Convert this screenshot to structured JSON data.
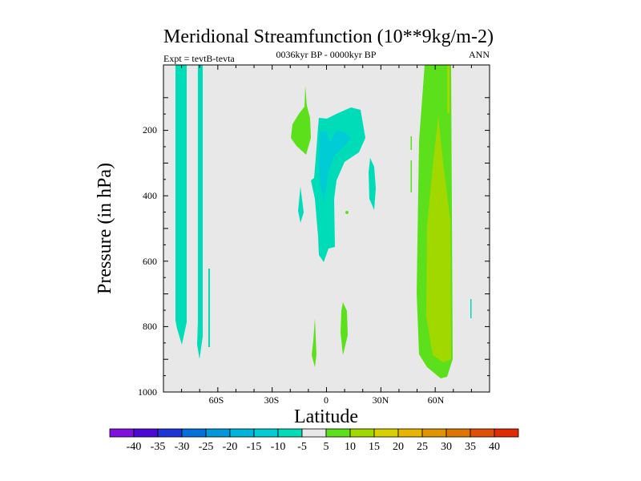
{
  "chart_data": {
    "type": "heatmap",
    "subtype": "filled-contour",
    "title": "Meridional Streamfunction (10**9kg/m-2)",
    "subtitle_left": "Expt = tevtB-tevta",
    "subtitle_center": "0036kyr BP - 0000kyr BP",
    "subtitle_right": "ANN",
    "xlabel": "Latitude",
    "ylabel": "Pressure (in hPa)",
    "xlim": [
      -90,
      90
    ],
    "ylim": [
      1000,
      0
    ],
    "x_ticks": [
      {
        "value": -60,
        "label": "60S"
      },
      {
        "value": -30,
        "label": "30S"
      },
      {
        "value": 0,
        "label": "0"
      },
      {
        "value": 30,
        "label": "30N"
      },
      {
        "value": 60,
        "label": "60N"
      }
    ],
    "y_ticks": [
      {
        "value": 200,
        "label": "200"
      },
      {
        "value": 400,
        "label": "400"
      },
      {
        "value": 600,
        "label": "600"
      },
      {
        "value": 800,
        "label": "800"
      },
      {
        "value": 1000,
        "label": "1000"
      }
    ],
    "colorbar": {
      "labels": [
        "-40",
        "-35",
        "-30",
        "-25",
        "-20",
        "-15",
        "-10",
        "-5",
        "5",
        "10",
        "15",
        "20",
        "25",
        "30",
        "35",
        "40"
      ],
      "colors": [
        "#7f10df",
        "#4c08d8",
        "#1e34d8",
        "#0070dc",
        "#0098dc",
        "#00b4dc",
        "#00ccd6",
        "#00dcb8",
        "#e8e8e8",
        "#5ce01c",
        "#a0d800",
        "#d8d000",
        "#e8b400",
        "#e09400",
        "#e07400",
        "#e05000",
        "#e02c00"
      ]
    },
    "features": [
      {
        "region": "~80S, 0-850 hPa",
        "range": "-10 to -5"
      },
      {
        "region": "~68S, 0-900 hPa",
        "range": "-10 to -5"
      },
      {
        "region": "~10S-20N, 150-600 hPa",
        "range": "-15 to -5"
      },
      {
        "region": "~15S, 100-270 hPa",
        "range": "5 to 10"
      },
      {
        "region": "~50N-70N, 0-960 hPa",
        "range": "5 to 15"
      }
    ]
  }
}
